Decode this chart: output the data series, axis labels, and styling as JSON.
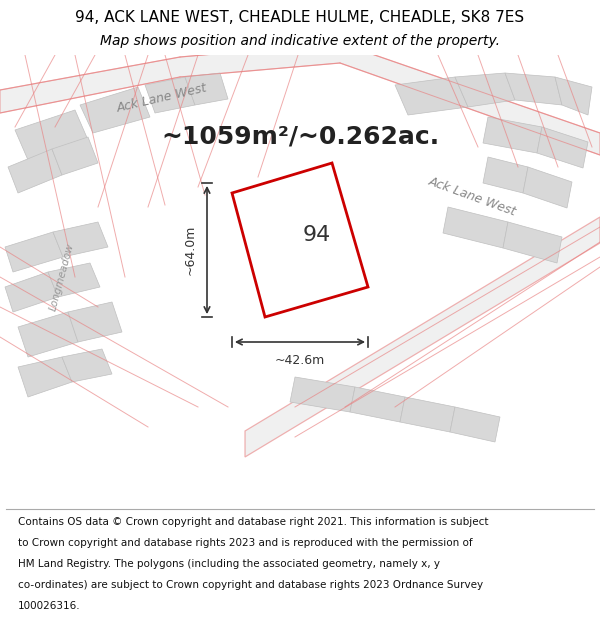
{
  "title_line1": "94, ACK LANE WEST, CHEADLE HULME, CHEADLE, SK8 7ES",
  "title_line2": "Map shows position and indicative extent of the property.",
  "area_text": "~1059m²/~0.262ac.",
  "label_property": "94",
  "label_width": "~42.6m",
  "label_height": "~64.0m",
  "footer_lines": [
    "Contains OS data © Crown copyright and database right 2021. This information is subject",
    "to Crown copyright and database rights 2023 and is reproduced with the permission of",
    "HM Land Registry. The polygons (including the associated geometry, namely x, y",
    "co-ordinates) are subject to Crown copyright and database rights 2023 Ordnance Survey",
    "100026316."
  ],
  "map_bg": "#f0efef",
  "building_fill": "#d8d8d8",
  "building_edge": "#c0c0c0",
  "road_line_color": "#e88080",
  "property_line_color": "#cc0000",
  "property_fill": "#ffffff",
  "dim_line_color": "#333333",
  "road_label_color": "#888888",
  "longmeadow_color": "#999999",
  "title_fontsize": 11,
  "subtitle_fontsize": 10,
  "area_fontsize": 18,
  "label_fontsize": 16,
  "road_label_fontsize": 9,
  "dim_fontsize": 9,
  "footer_fontsize": 7.5
}
